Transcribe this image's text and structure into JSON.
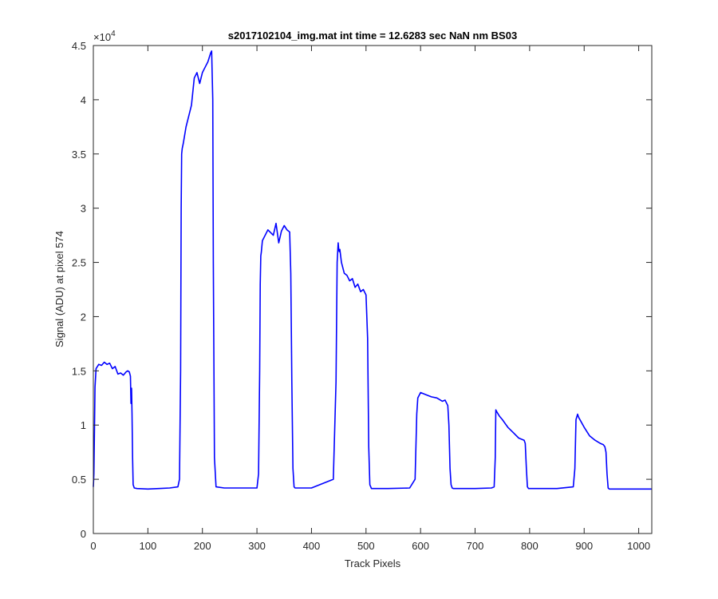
{
  "chart_data": {
    "type": "line",
    "title": "s2017102104_img.mat int time = 12.6283 sec  NaN nm BS03",
    "xlabel": "Track Pixels",
    "ylabel": "Signal (ADU) at pixel 574",
    "y_exponent_label": "×10",
    "y_exponent_power": "4",
    "xlim": [
      0,
      1024
    ],
    "ylim": [
      0,
      45000
    ],
    "xticks": [
      0,
      100,
      200,
      300,
      400,
      500,
      600,
      700,
      800,
      900,
      1000
    ],
    "xtick_labels": [
      "0",
      "100",
      "200",
      "300",
      "400",
      "500",
      "600",
      "700",
      "800",
      "900",
      "1000"
    ],
    "yticks": [
      0,
      5000,
      10000,
      15000,
      20000,
      25000,
      30000,
      35000,
      40000,
      45000
    ],
    "ytick_labels": [
      "0",
      "0.5",
      "1",
      "1.5",
      "2",
      "2.5",
      "3",
      "3.5",
      "4",
      "4.5"
    ],
    "grid": false,
    "line_color": "#0000ff",
    "series": [
      {
        "x": [
          0,
          1,
          3,
          5,
          10,
          15,
          20,
          25,
          30,
          35,
          40,
          45,
          50,
          55,
          60,
          63,
          66,
          68,
          69,
          70,
          71,
          72,
          73,
          75,
          80,
          100,
          120,
          140,
          155,
          158,
          160,
          161,
          162,
          163,
          165,
          170,
          175,
          180,
          185,
          190,
          195,
          200,
          205,
          210,
          215,
          217,
          219,
          220,
          222,
          225,
          240,
          270,
          300,
          303,
          305,
          306,
          307,
          308,
          310,
          320,
          330,
          335,
          340,
          345,
          350,
          355,
          360,
          362,
          364,
          366,
          368,
          370,
          375,
          400,
          440,
          445,
          447,
          449,
          450,
          451,
          452,
          455,
          460,
          465,
          470,
          475,
          480,
          485,
          490,
          495,
          500,
          503,
          505,
          507,
          510,
          540,
          580,
          590,
          593,
          595,
          600,
          610,
          620,
          630,
          640,
          645,
          650,
          652,
          654,
          656,
          658,
          660,
          700,
          730,
          735,
          737,
          738,
          740,
          745,
          750,
          760,
          770,
          780,
          790,
          792,
          794,
          796,
          798,
          800,
          850,
          880,
          883,
          885,
          888,
          890,
          900,
          910,
          920,
          930,
          935,
          938,
          940,
          942,
          944,
          946,
          950,
          1000,
          1024
        ],
        "y": [
          4300,
          5500,
          13500,
          15200,
          15600,
          15500,
          15800,
          15600,
          15700,
          15200,
          15400,
          14700,
          14800,
          14600,
          14900,
          15000,
          14900,
          14500,
          12000,
          13400,
          11000,
          7000,
          4500,
          4200,
          4150,
          4100,
          4150,
          4200,
          4300,
          5000,
          15000,
          30000,
          35000,
          35500,
          36000,
          37500,
          38500,
          39500,
          42000,
          42500,
          41500,
          42500,
          43000,
          43500,
          44300,
          44500,
          40000,
          25000,
          7000,
          4300,
          4200,
          4200,
          4200,
          5500,
          15000,
          23000,
          25600,
          25900,
          27000,
          28000,
          27500,
          28600,
          26800,
          27900,
          28400,
          28000,
          27800,
          24000,
          14000,
          6000,
          4300,
          4200,
          4200,
          4200,
          5000,
          14000,
          25000,
          26800,
          26200,
          26000,
          26200,
          25000,
          24000,
          23800,
          23300,
          23500,
          22700,
          23000,
          22300,
          22500,
          22000,
          18000,
          8000,
          4500,
          4150,
          4150,
          4200,
          5000,
          11000,
          12500,
          13000,
          12800,
          12600,
          12500,
          12200,
          12300,
          11800,
          10000,
          6000,
          4500,
          4200,
          4150,
          4150,
          4200,
          4300,
          7000,
          11400,
          11200,
          10800,
          10500,
          9800,
          9300,
          8800,
          8600,
          8300,
          6000,
          4300,
          4150,
          4150,
          4150,
          4300,
          6000,
          10500,
          11000,
          10700,
          9800,
          9000,
          8600,
          8300,
          8200,
          8000,
          7500,
          5500,
          4200,
          4100,
          4100,
          4100,
          4100
        ]
      }
    ]
  }
}
